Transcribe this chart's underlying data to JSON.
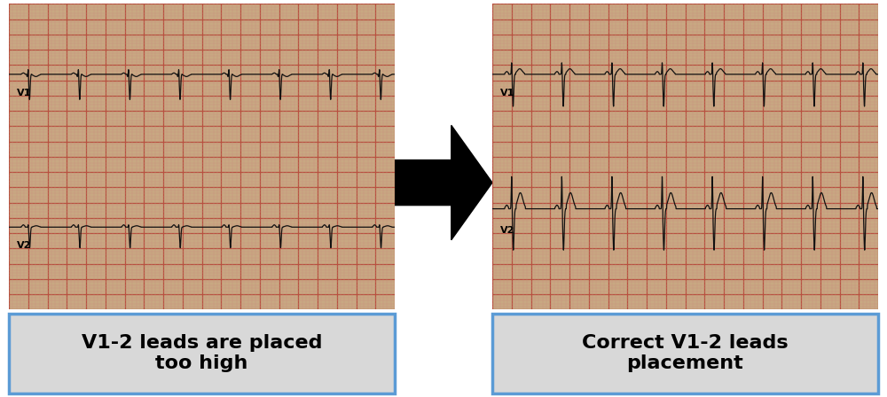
{
  "left_caption": "V1-2 leads are placed\ntoo high",
  "right_caption": "Correct V1-2 leads\nplacement",
  "caption_fontsize": 16,
  "caption_fontweight": "bold",
  "ecg_bg_color": "#c8a882",
  "grid_major_color": "#b85040",
  "grid_minor_color": "#c89080",
  "ecg_line_color": "#111111",
  "caption_bg": "#d8d8d8",
  "caption_border": "#5b9bd5",
  "arrow_color": "#000000",
  "white_bg": "#ffffff",
  "v1_label": "V1",
  "v2_label": "V2"
}
